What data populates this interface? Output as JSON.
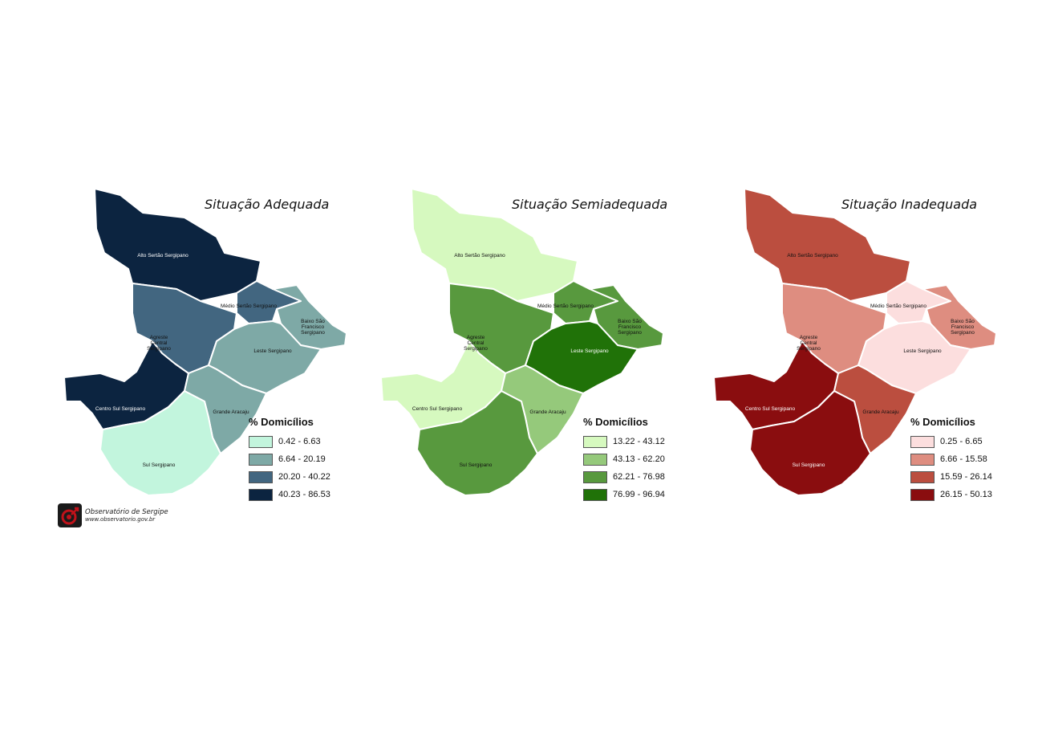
{
  "maps": [
    {
      "title": "Situação Adequada",
      "legend_title": "% Domicílios",
      "classes": [
        {
          "label": "0.42 - 6.63",
          "color": "#c2f5dd"
        },
        {
          "label": "6.64 - 20.19",
          "color": "#7ea9a6"
        },
        {
          "label": "20.20 - 40.22",
          "color": "#426680"
        },
        {
          "label": "40.23 - 86.53",
          "color": "#0c2440"
        }
      ]
    },
    {
      "title": "Situação Semiadequada",
      "legend_title": "% Domicílios",
      "classes": [
        {
          "label": "13.22 - 43.12",
          "color": "#d6f9bf"
        },
        {
          "label": "43.13 - 62.20",
          "color": "#95c97b"
        },
        {
          "label": "62.21 - 76.98",
          "color": "#58993e"
        },
        {
          "label": "76.99 - 96.94",
          "color": "#207208"
        }
      ]
    },
    {
      "title": "Situação Inadequada",
      "legend_title": "% Domicílios",
      "classes": [
        {
          "label": "0.25 - 6.65",
          "color": "#fcdede"
        },
        {
          "label": "6.66 - 15.58",
          "color": "#de8d80"
        },
        {
          "label": "15.59 - 26.14",
          "color": "#bb4e3f"
        },
        {
          "label": "26.15 - 50.13",
          "color": "#8a0d0f"
        }
      ]
    }
  ],
  "regions": [
    {
      "key": "alto",
      "label": [
        "Alto Sertão Sergipano"
      ]
    },
    {
      "key": "medio",
      "label": [
        "Médio Sertão Sergipano"
      ]
    },
    {
      "key": "baixo",
      "label": [
        "Baixo São",
        "Francisco",
        "Sergipano"
      ]
    },
    {
      "key": "agreste",
      "label": [
        "Agreste",
        "Central",
        "Sergipano"
      ]
    },
    {
      "key": "leste",
      "label": [
        "Leste Sergipano"
      ]
    },
    {
      "key": "centrosul",
      "label": [
        "Centro Sul Sergipano"
      ]
    },
    {
      "key": "grande",
      "label": [
        "Grande Aracaju"
      ]
    },
    {
      "key": "sul",
      "label": [
        "Sul Sergipano"
      ]
    }
  ],
  "region_classes": [
    {
      "alto": 3,
      "medio": 2,
      "baixo": 1,
      "agreste": 2,
      "leste": 1,
      "centrosul": 3,
      "grande": 1,
      "sul": 0
    },
    {
      "alto": 0,
      "medio": 2,
      "baixo": 2,
      "agreste": 2,
      "leste": 3,
      "centrosul": 0,
      "grande": 1,
      "sul": 2
    },
    {
      "alto": 2,
      "medio": 0,
      "baixo": 1,
      "agreste": 1,
      "leste": 0,
      "centrosul": 3,
      "grande": 2,
      "sul": 3
    }
  ],
  "logo": {
    "name": "Observatório de Sergipe",
    "url": "www.observatorio.gov.br"
  }
}
